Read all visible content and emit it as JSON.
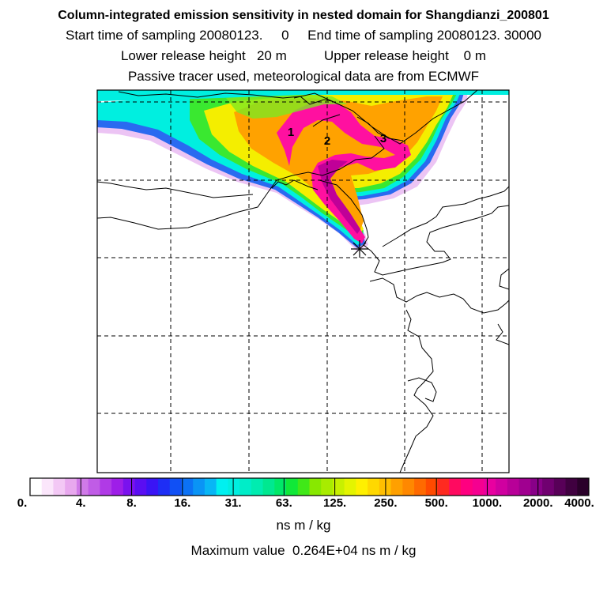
{
  "header": {
    "title": "Column-integrated emission sensitivity in nested domain for Shangdianzi_200801",
    "line2": "Start time of sampling 20080123.     0     End time of sampling 20080123. 30000",
    "line3": "Lower release height   20 m          Upper release height    0 m",
    "line4": "Passive tracer used, meteorological data are from ECMWF"
  },
  "map": {
    "markers": [
      {
        "label": "1"
      },
      {
        "label": "2"
      },
      {
        "label": "3"
      }
    ],
    "release_site_marker": "asterisk-icon"
  },
  "colorbar": {
    "tick_labels": [
      "0.",
      "4.",
      "8.",
      "16.",
      "31.",
      "63.",
      "125.",
      "250.",
      "500.",
      "1000.",
      "2000.",
      "4000."
    ],
    "colors": [
      "#ffffff",
      "#fbe6fb",
      "#f3c8f5",
      "#e8a8ee",
      "#d07ae8",
      "#c05ce6",
      "#b03ae6",
      "#9e1ee8",
      "#7a12ee",
      "#5a0ef2",
      "#3a14f5",
      "#1e2ef5",
      "#1050f5",
      "#0c72f5",
      "#0a94f5",
      "#08b6f5",
      "#00f0f0",
      "#00eee0",
      "#00edc8",
      "#00ecb0",
      "#00e890",
      "#00e868",
      "#10e838",
      "#40e818",
      "#88e800",
      "#a8ec00",
      "#c8f000",
      "#e4f400",
      "#fff000",
      "#ffd800",
      "#ffbe00",
      "#ffa000",
      "#ff8800",
      "#ff6a00",
      "#ff4a00",
      "#ff2a20",
      "#ff0a60",
      "#ff0080",
      "#f50090",
      "#e800a0",
      "#d000a0",
      "#b80098",
      "#a00090",
      "#880088",
      "#700070",
      "#580058",
      "#400040",
      "#2a002a"
    ],
    "unit": "ns m / kg"
  },
  "footer": {
    "maximum": "Maximum value  0.264E+04 ns m / kg"
  }
}
